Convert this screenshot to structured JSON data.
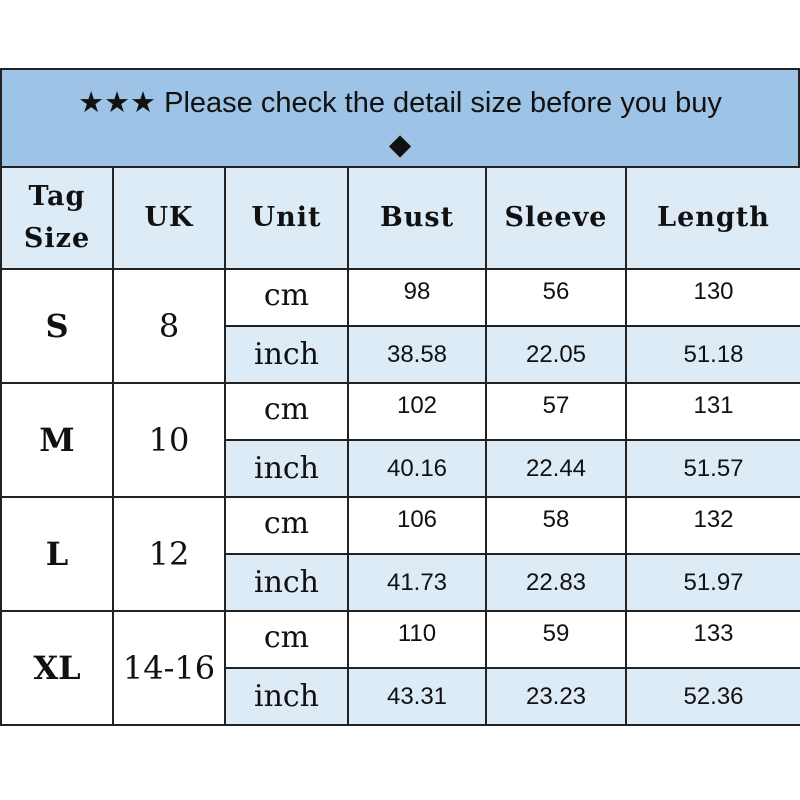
{
  "banner": {
    "stars": "★★★",
    "text": "Please check the detail size before you buy",
    "diamond": "◆"
  },
  "headers": [
    "Tag Size",
    "UK",
    "Unit",
    "Bust",
    "Sleeve",
    "Length"
  ],
  "headers_split": {
    "tag": "Tag",
    "size": "Size"
  },
  "colors": {
    "banner": "#9dc3e6",
    "header": "#ddebf7",
    "inch_row": "#ddebf7"
  },
  "rows": [
    {
      "size": "S",
      "uk": "8",
      "cm": {
        "unit": "cm",
        "bust": "98",
        "sleeve": "56",
        "length": "130"
      },
      "inch": {
        "unit": "inch",
        "bust": "38.58",
        "sleeve": "22.05",
        "length": "51.18"
      }
    },
    {
      "size": "M",
      "uk": "10",
      "cm": {
        "unit": "cm",
        "bust": "102",
        "sleeve": "57",
        "length": "131"
      },
      "inch": {
        "unit": "inch",
        "bust": "40.16",
        "sleeve": "22.44",
        "length": "51.57"
      }
    },
    {
      "size": "L",
      "uk": "12",
      "cm": {
        "unit": "cm",
        "bust": "106",
        "sleeve": "58",
        "length": "132"
      },
      "inch": {
        "unit": "inch",
        "bust": "41.73",
        "sleeve": "22.83",
        "length": "51.97"
      }
    },
    {
      "size": "XL",
      "uk": "14-16",
      "cm": {
        "unit": "cm",
        "bust": "110",
        "sleeve": "59",
        "length": "133"
      },
      "inch": {
        "unit": "inch",
        "bust": "43.31",
        "sleeve": "23.23",
        "length": "52.36"
      }
    }
  ]
}
